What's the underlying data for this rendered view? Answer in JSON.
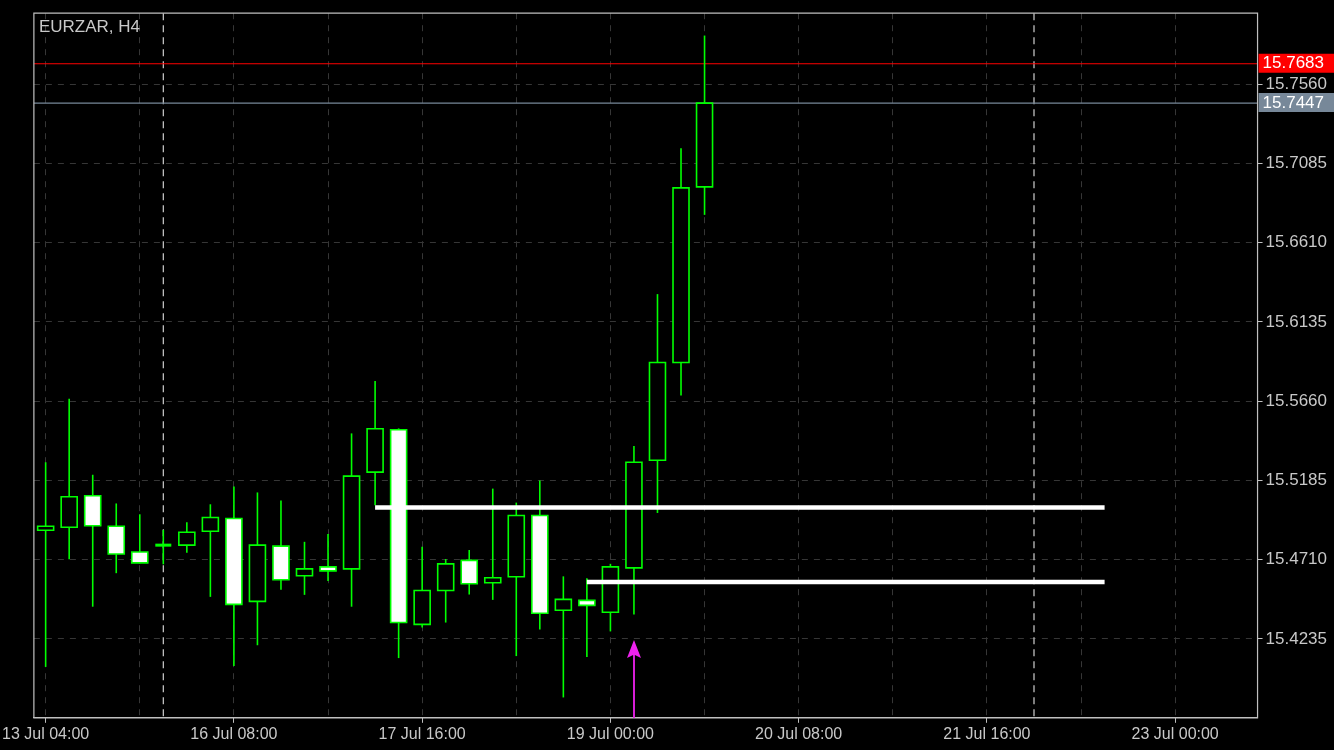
{
  "chart_data": {
    "type": "candlestick",
    "title": "EURZAR, H4",
    "categories": [
      "13 Jul 04:00",
      null,
      null,
      null,
      null,
      null,
      null,
      null,
      "16 Jul 08:00",
      null,
      null,
      null,
      null,
      null,
      null,
      null,
      "17 Jul 16:00",
      null,
      null,
      null,
      null,
      null,
      null,
      null,
      "19 Jul 00:00",
      null,
      null,
      null,
      null,
      null,
      null,
      null,
      "20 Jul 08:00",
      null,
      null,
      null,
      null,
      null,
      null,
      null,
      "21 Jul 16:00",
      null,
      null,
      null,
      null,
      null,
      null,
      null,
      "23 Jul 00:00",
      null,
      null,
      null
    ],
    "ohlc": [
      [
        15.4886,
        15.5294,
        15.4067,
        15.491
      ],
      [
        15.4904,
        15.5675,
        15.4712,
        15.5087
      ],
      [
        15.5093,
        15.5219,
        15.4428,
        15.4913
      ],
      [
        15.491,
        15.5047,
        15.4629,
        15.4744
      ],
      [
        15.4756,
        15.4982,
        15.4688,
        15.4691
      ],
      [
        15.4797,
        15.4888,
        15.4682,
        15.4797
      ],
      [
        15.4797,
        15.4935,
        15.4752,
        15.4874
      ],
      [
        15.488,
        15.5042,
        15.4487,
        15.4963
      ],
      [
        15.4957,
        15.5148,
        15.4073,
        15.4442
      ],
      [
        15.446,
        15.5113,
        15.4197,
        15.4797
      ],
      [
        15.4791,
        15.5065,
        15.4529,
        15.459
      ],
      [
        15.4614,
        15.4817,
        15.4499,
        15.4655
      ],
      [
        15.4667,
        15.4864,
        15.4582,
        15.4643
      ],
      [
        15.4655,
        15.5467,
        15.4428,
        15.5211
      ],
      [
        15.5235,
        15.5781,
        15.5036,
        15.5495
      ],
      [
        15.5489,
        15.5497,
        15.412,
        15.4333
      ],
      [
        15.4322,
        15.4787,
        15.4304,
        15.4525
      ],
      [
        15.4525,
        15.4714,
        15.4333,
        15.4685
      ],
      [
        15.4706,
        15.4768,
        15.4501,
        15.4566
      ],
      [
        15.4572,
        15.5136,
        15.4469,
        15.4602
      ],
      [
        15.4608,
        15.5052,
        15.4132,
        15.4975
      ],
      [
        15.4975,
        15.5184,
        15.4292,
        15.4389
      ],
      [
        15.4407,
        15.461,
        15.3884,
        15.4472
      ],
      [
        15.4466,
        15.4598,
        15.4126,
        15.4436
      ],
      [
        15.4395,
        15.4685,
        15.428,
        15.4667
      ],
      [
        15.4661,
        15.5391,
        15.4381,
        15.5294
      ],
      [
        15.5306,
        15.6302,
        15.499,
        15.5892
      ],
      [
        15.5892,
        15.7177,
        15.5694,
        15.6939
      ],
      [
        15.6945,
        15.7852,
        15.6777,
        15.7447
      ],
      null,
      null,
      null,
      null,
      null,
      null,
      null,
      null,
      null,
      null,
      null,
      null,
      null,
      null,
      null,
      null,
      null,
      null,
      null,
      null,
      null,
      null,
      null
    ],
    "color": "#00ff00",
    "colors": [
      "#000000",
      "#000000",
      "#ffffff",
      "#ffffff",
      "#ffffff",
      "#00ff00",
      "#000000",
      "#000000",
      "#ffffff",
      "#000000",
      "#ffffff",
      "#000000",
      "#ffffff",
      "#000000",
      "#000000",
      "#ffffff",
      "#000000",
      "#000000",
      "#ffffff",
      "#000000",
      "#000000",
      "#ffffff",
      "#000000",
      "#ffffff",
      "#000000",
      "#000000",
      "#000000",
      "#000000",
      "#000000",
      null,
      null,
      null,
      null,
      null,
      null,
      null,
      null,
      null,
      null,
      null,
      null,
      null,
      null,
      null,
      null,
      null,
      null,
      null,
      null,
      null,
      null,
      null
    ],
    "series": [
      {
        "type": "line",
        "color": "#ffffff",
        "values": [
          null,
          null,
          null,
          null,
          null,
          null,
          null,
          null,
          null,
          null,
          null,
          null,
          null,
          null,
          15.5022,
          15.5022,
          15.5022,
          15.5022,
          15.5022,
          15.5022,
          15.5022,
          15.5022,
          15.5022,
          15.5022,
          15.5022,
          15.5022,
          15.5022,
          15.5022,
          15.5022,
          15.5022,
          15.5022,
          15.5022,
          15.5022,
          15.5022,
          15.5022,
          15.5022,
          15.5022,
          15.5022,
          15.5022,
          15.5022,
          15.5022,
          15.5022,
          15.5022,
          15.5022,
          15.5022,
          15.5022,
          null,
          null,
          null,
          null,
          null,
          null
        ]
      },
      {
        "type": "line",
        "color": "#ffffff",
        "values": [
          null,
          null,
          null,
          null,
          null,
          null,
          null,
          null,
          null,
          null,
          null,
          null,
          null,
          null,
          null,
          null,
          null,
          null,
          null,
          null,
          null,
          null,
          null,
          15.4576,
          15.4576,
          15.4576,
          15.4576,
          15.4576,
          15.4576,
          15.4576,
          15.4576,
          15.4576,
          15.4576,
          15.4576,
          15.4576,
          15.4576,
          15.4576,
          15.4576,
          15.4576,
          15.4576,
          15.4576,
          15.4576,
          15.4576,
          15.4576,
          15.4576,
          15.4576,
          null,
          null,
          null,
          null,
          null,
          null
        ]
      }
    ],
    "ylim": [
      15.3762,
      15.7986
    ],
    "yticks": [
      15.4235,
      {
        "value": 15.471,
        "label": "15.4710"
      },
      15.5185,
      {
        "value": 15.566,
        "label": "15.5660"
      },
      15.6135,
      {
        "value": 15.661,
        "label": "15.6610"
      },
      15.7085,
      {
        "value": 15.756,
        "label": "15.7560"
      }
    ],
    "grid": true,
    "ref_lines": [
      {
        "axis": "y",
        "value": 15.7683,
        "label": "15.7683",
        "color": "#ff0000"
      },
      {
        "axis": "y",
        "value": 15.7447,
        "label": "15.7447",
        "color": "#778899"
      }
    ]
  }
}
